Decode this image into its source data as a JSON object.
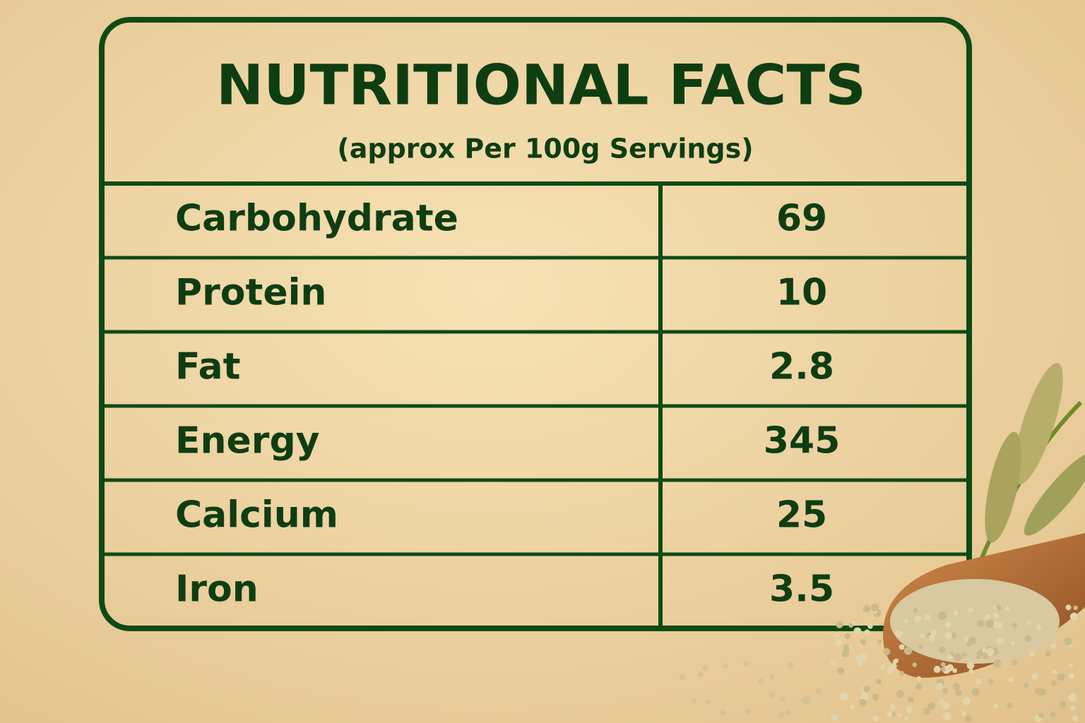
{
  "header": {
    "title": "NUTRITIONAL FACTS",
    "subtitle": "(approx Per 100g Servings)"
  },
  "table": {
    "rows": [
      [
        "Carbohydrate",
        "69"
      ],
      [
        "Protein",
        "10"
      ],
      [
        "Fat",
        "2.8"
      ],
      [
        "Energy",
        "345"
      ],
      [
        "Calcium",
        "25"
      ],
      [
        "Iron",
        "3.5"
      ]
    ]
  }
}
